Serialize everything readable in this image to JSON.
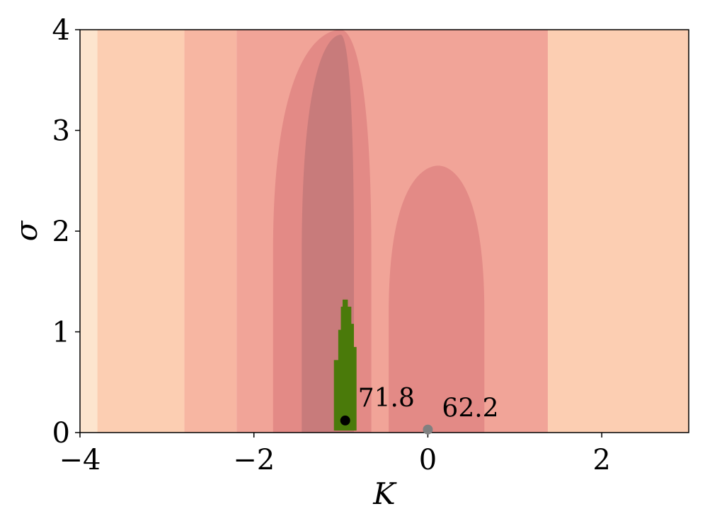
{
  "chart_data": {
    "type": "contour",
    "xlabel": "K",
    "ylabel": "σ",
    "xlim": [
      -4,
      3
    ],
    "ylim": [
      0,
      4
    ],
    "x_ticks": [
      {
        "value": -4,
        "label": "−4"
      },
      {
        "value": -2,
        "label": "−2"
      },
      {
        "value": 0,
        "label": "0"
      },
      {
        "value": 2,
        "label": "2"
      }
    ],
    "y_ticks": [
      {
        "value": 0,
        "label": "0"
      },
      {
        "value": 1,
        "label": "1"
      },
      {
        "value": 2,
        "label": "2"
      },
      {
        "value": 3,
        "label": "3"
      },
      {
        "value": 4,
        "label": "4"
      }
    ],
    "grid": false,
    "colors": {
      "level_0": "#fde5ce",
      "level_1": "#fcceb2",
      "level_2": "#f7b6a2",
      "level_3": "#f1a498",
      "level_4": "#e38a86",
      "level_5": "#c87b7b",
      "feasible_region": "#4a7a0a",
      "best_point": "#000000",
      "reference_point": "#808080"
    },
    "bands": [
      {
        "level": 0,
        "x_range": [
          -4,
          -3.8
        ]
      },
      {
        "level": 1,
        "x_range": [
          -3.8,
          -2.8
        ]
      },
      {
        "level": 2,
        "x_range": [
          -2.8,
          -2.2
        ]
      },
      {
        "level": 3,
        "x_range": [
          -2.2,
          1.38
        ]
      },
      {
        "level": 1,
        "x_range": [
          1.38,
          3
        ]
      }
    ],
    "inner_regions": [
      {
        "level": 4,
        "x_range": [
          -1.78,
          -0.65
        ],
        "peak": [
          -1.0,
          4.0
        ]
      },
      {
        "level": 5,
        "x_range": [
          -1.45,
          -0.85
        ],
        "peak": [
          -1.0,
          3.95
        ]
      },
      {
        "level": 4,
        "x_range": [
          -0.45,
          0.65
        ],
        "peak": [
          0.12,
          2.65
        ]
      }
    ],
    "feasible_region_outline": [
      [
        -1.08,
        0.02
      ],
      [
        -0.82,
        0.02
      ],
      [
        -0.82,
        0.85
      ],
      [
        -0.85,
        0.85
      ],
      [
        -0.85,
        1.08
      ],
      [
        -0.88,
        1.08
      ],
      [
        -0.88,
        1.25
      ],
      [
        -0.92,
        1.25
      ],
      [
        -0.92,
        1.32
      ],
      [
        -0.98,
        1.32
      ],
      [
        -0.98,
        1.25
      ],
      [
        -1.0,
        1.25
      ],
      [
        -1.0,
        1.02
      ],
      [
        -1.03,
        1.02
      ],
      [
        -1.03,
        0.72
      ],
      [
        -1.08,
        0.72
      ]
    ],
    "points": [
      {
        "name": "best",
        "x": -0.95,
        "y": 0.12,
        "label": "71.8"
      },
      {
        "name": "reference",
        "x": 0.0,
        "y": 0.03,
        "label": "62.2"
      }
    ]
  }
}
